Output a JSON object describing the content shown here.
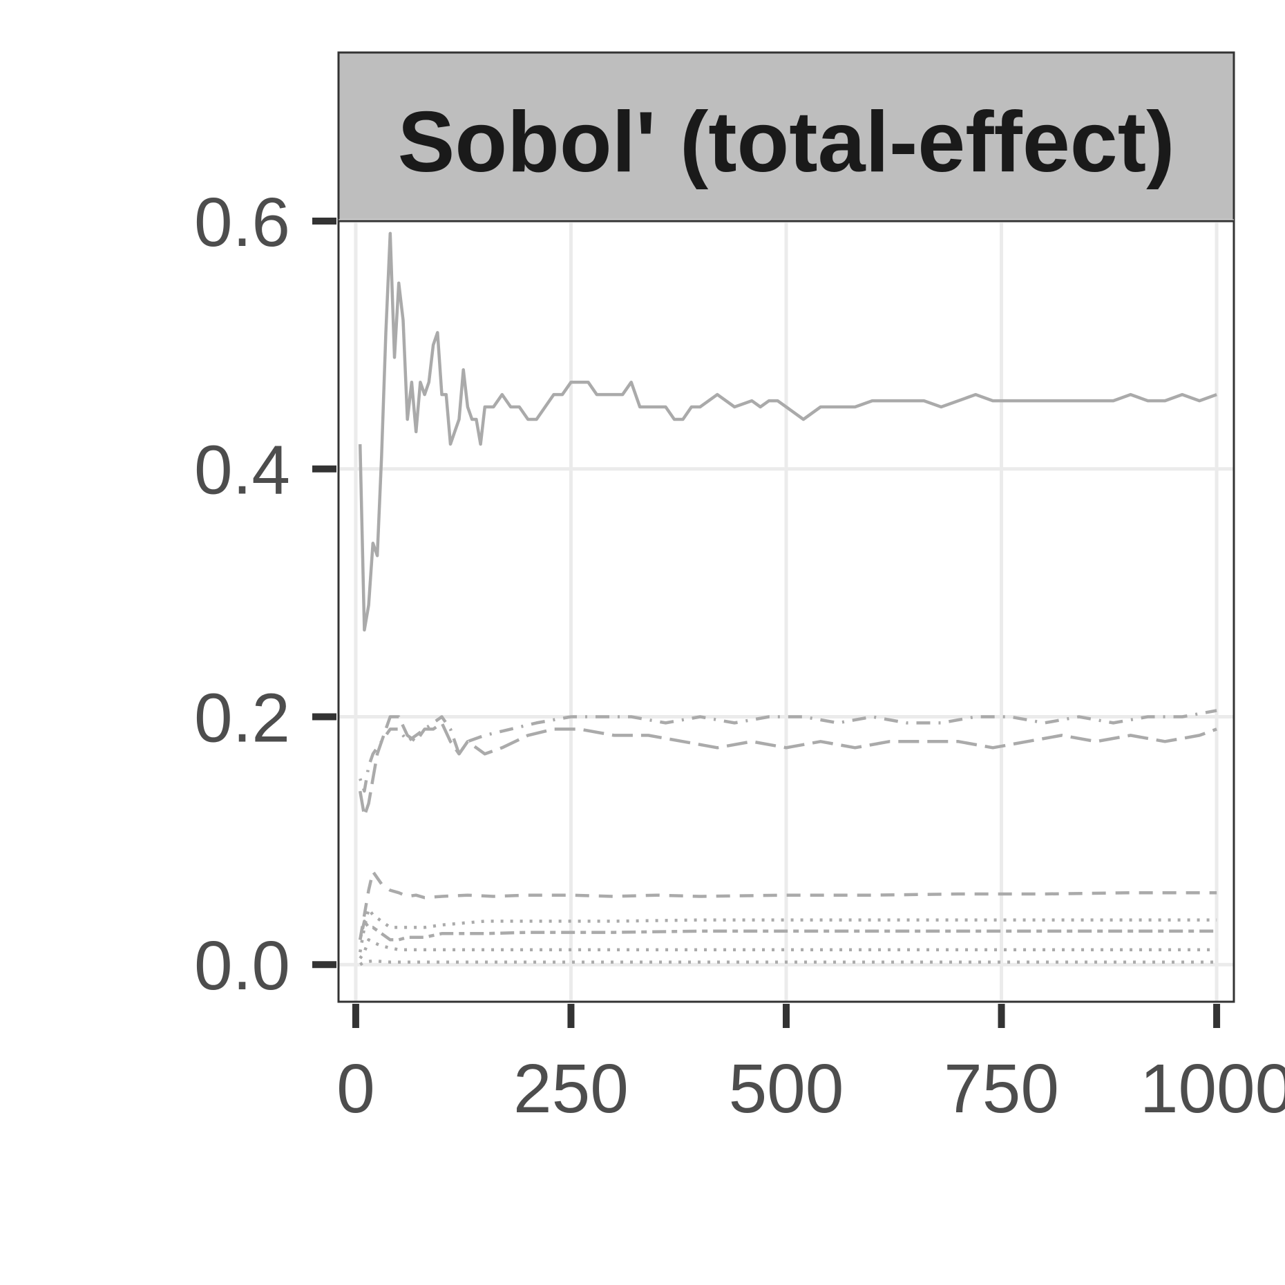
{
  "chart_data": {
    "type": "line",
    "title": "Sobol' (total-effect)",
    "xlabel": "",
    "ylabel": "",
    "xlim": [
      -20,
      1020
    ],
    "ylim": [
      -0.03,
      0.6
    ],
    "x_ticks": [
      0,
      250,
      500,
      750,
      1000
    ],
    "x_tick_labels": [
      "0",
      "250",
      "500",
      "750",
      "1000"
    ],
    "y_ticks": [
      0.0,
      0.2,
      0.4,
      0.6
    ],
    "y_tick_labels": [
      "0.0",
      "0.2",
      "0.4",
      "0.6"
    ],
    "grid": true,
    "legend": "none",
    "line_color": "#aaaaaa",
    "series": [
      {
        "linetype": "solid",
        "x": [
          5,
          10,
          15,
          20,
          25,
          30,
          35,
          40,
          45,
          50,
          55,
          60,
          65,
          70,
          75,
          80,
          85,
          90,
          95,
          100,
          105,
          110,
          115,
          120,
          125,
          130,
          135,
          140,
          145,
          150,
          160,
          170,
          180,
          190,
          200,
          210,
          220,
          230,
          240,
          250,
          260,
          270,
          280,
          290,
          300,
          310,
          320,
          330,
          340,
          350,
          360,
          370,
          380,
          390,
          400,
          420,
          440,
          460,
          470,
          480,
          490,
          500,
          520,
          540,
          560,
          580,
          600,
          620,
          640,
          660,
          680,
          700,
          720,
          740,
          760,
          780,
          800,
          820,
          840,
          860,
          880,
          900,
          920,
          940,
          960,
          980,
          1000
        ],
        "y": [
          0.42,
          0.27,
          0.29,
          0.34,
          0.33,
          0.41,
          0.51,
          0.59,
          0.49,
          0.55,
          0.52,
          0.44,
          0.47,
          0.43,
          0.47,
          0.46,
          0.47,
          0.5,
          0.51,
          0.46,
          0.46,
          0.42,
          0.43,
          0.44,
          0.48,
          0.45,
          0.44,
          0.44,
          0.42,
          0.45,
          0.45,
          0.46,
          0.45,
          0.45,
          0.44,
          0.44,
          0.45,
          0.46,
          0.46,
          0.47,
          0.47,
          0.47,
          0.46,
          0.46,
          0.46,
          0.46,
          0.47,
          0.45,
          0.45,
          0.45,
          0.45,
          0.44,
          0.44,
          0.45,
          0.45,
          0.46,
          0.45,
          0.455,
          0.45,
          0.455,
          0.455,
          0.45,
          0.44,
          0.45,
          0.45,
          0.45,
          0.455,
          0.455,
          0.455,
          0.455,
          0.45,
          0.455,
          0.46,
          0.455,
          0.455,
          0.455,
          0.455,
          0.455,
          0.455,
          0.455,
          0.455,
          0.46,
          0.455,
          0.455,
          0.46,
          0.455,
          0.46
        ]
      },
      {
        "linetype": "longdash",
        "x": [
          5,
          10,
          15,
          20,
          25,
          30,
          35,
          40,
          50,
          60,
          70,
          80,
          90,
          100,
          110,
          120,
          130,
          140,
          150,
          170,
          200,
          230,
          260,
          300,
          340,
          380,
          420,
          460,
          500,
          540,
          580,
          620,
          660,
          700,
          740,
          780,
          820,
          860,
          900,
          940,
          980,
          1000
        ],
        "y": [
          0.14,
          0.12,
          0.13,
          0.15,
          0.17,
          0.18,
          0.19,
          0.2,
          0.2,
          0.185,
          0.18,
          0.19,
          0.19,
          0.195,
          0.18,
          0.17,
          0.18,
          0.175,
          0.17,
          0.175,
          0.185,
          0.19,
          0.19,
          0.185,
          0.185,
          0.18,
          0.175,
          0.18,
          0.175,
          0.18,
          0.175,
          0.18,
          0.18,
          0.18,
          0.175,
          0.18,
          0.185,
          0.18,
          0.185,
          0.18,
          0.185,
          0.19
        ]
      },
      {
        "linetype": "dotdash",
        "x": [
          5,
          10,
          15,
          20,
          30,
          40,
          50,
          60,
          70,
          80,
          90,
          100,
          110,
          120,
          130,
          150,
          180,
          210,
          250,
          280,
          320,
          360,
          400,
          440,
          480,
          520,
          560,
          600,
          640,
          680,
          720,
          760,
          800,
          840,
          880,
          920,
          960,
          1000
        ],
        "y": [
          0.15,
          0.14,
          0.16,
          0.17,
          0.18,
          0.19,
          0.19,
          0.18,
          0.185,
          0.19,
          0.195,
          0.2,
          0.19,
          0.17,
          0.18,
          0.185,
          0.19,
          0.195,
          0.2,
          0.2,
          0.2,
          0.195,
          0.2,
          0.195,
          0.2,
          0.2,
          0.195,
          0.2,
          0.195,
          0.195,
          0.2,
          0.2,
          0.195,
          0.2,
          0.195,
          0.2,
          0.2,
          0.205
        ]
      },
      {
        "linetype": "dashed",
        "x": [
          5,
          10,
          15,
          20,
          30,
          40,
          50,
          60,
          70,
          80,
          100,
          130,
          160,
          200,
          250,
          300,
          350,
          400,
          500,
          600,
          700,
          800,
          900,
          1000
        ],
        "y": [
          0.02,
          0.04,
          0.06,
          0.075,
          0.065,
          0.06,
          0.058,
          0.055,
          0.056,
          0.054,
          0.055,
          0.056,
          0.055,
          0.056,
          0.056,
          0.055,
          0.056,
          0.055,
          0.056,
          0.056,
          0.057,
          0.057,
          0.058,
          0.058
        ]
      },
      {
        "linetype": "twodash",
        "x": [
          5,
          10,
          15,
          20,
          30,
          40,
          50,
          60,
          80,
          100,
          150,
          200,
          300,
          400,
          500,
          600,
          700,
          800,
          900,
          1000
        ],
        "y": [
          0.02,
          0.035,
          0.03,
          0.03,
          0.025,
          0.02,
          0.02,
          0.022,
          0.022,
          0.025,
          0.025,
          0.026,
          0.026,
          0.027,
          0.027,
          0.027,
          0.027,
          0.027,
          0.027,
          0.027
        ]
      },
      {
        "linetype": "dotted",
        "x": [
          5,
          10,
          15,
          20,
          30,
          40,
          60,
          80,
          100,
          150,
          200,
          300,
          400,
          500,
          600,
          700,
          800,
          900,
          1000
        ],
        "y": [
          0.01,
          0.03,
          0.045,
          0.04,
          0.035,
          0.03,
          0.03,
          0.03,
          0.032,
          0.035,
          0.035,
          0.035,
          0.036,
          0.036,
          0.036,
          0.036,
          0.036,
          0.036,
          0.036
        ]
      },
      {
        "linetype": "dotted",
        "x": [
          5,
          10,
          15,
          20,
          30,
          50,
          80,
          100,
          150,
          200,
          300,
          400,
          500,
          600,
          700,
          800,
          900,
          1000
        ],
        "y": [
          0.005,
          0.01,
          0.02,
          0.018,
          0.015,
          0.012,
          0.012,
          0.012,
          0.012,
          0.012,
          0.012,
          0.012,
          0.012,
          0.012,
          0.012,
          0.012,
          0.012,
          0.012
        ]
      },
      {
        "linetype": "dotted",
        "x": [
          5,
          10,
          20,
          40,
          80,
          150,
          300,
          500,
          700,
          900,
          1000
        ],
        "y": [
          0.0,
          0.002,
          0.003,
          0.002,
          0.002,
          0.002,
          0.002,
          0.002,
          0.002,
          0.002,
          0.002
        ]
      }
    ]
  }
}
